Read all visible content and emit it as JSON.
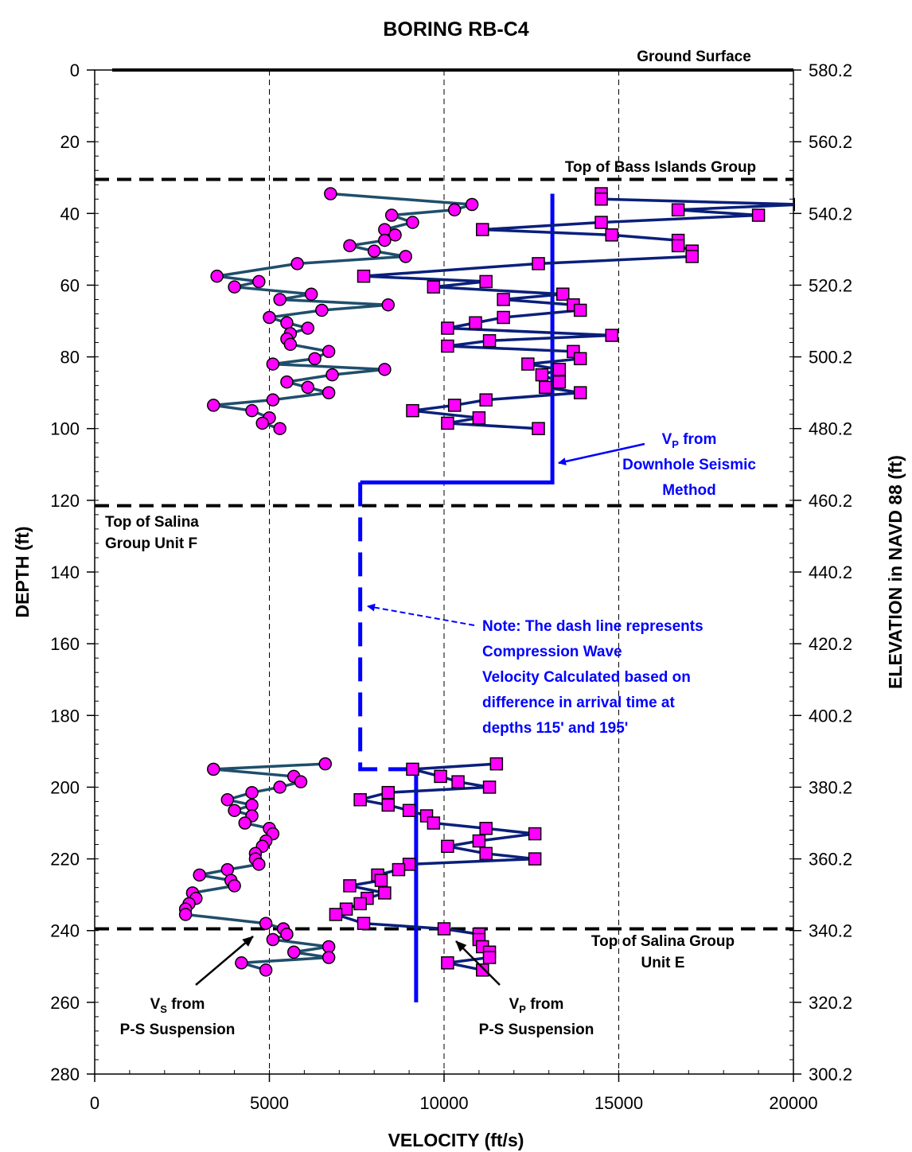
{
  "chart_data": {
    "type": "scatter",
    "title": "BORING RB-C4",
    "xlabel": "VELOCITY (ft/s)",
    "ylabel": "DEPTH (ft)",
    "y2label": "ELEVATION in NAVD 88 (ft)",
    "xlim": [
      0,
      20000
    ],
    "ylim": [
      0,
      280
    ],
    "y_inverted": true,
    "x_ticks": [
      "0",
      "5000",
      "10000",
      "15000",
      "20000"
    ],
    "y_ticks": [
      "0",
      "20",
      "40",
      "60",
      "80",
      "100",
      "120",
      "140",
      "160",
      "180",
      "200",
      "220",
      "240",
      "260",
      "280"
    ],
    "y2_ticks": [
      "580.2",
      "560.2",
      "540.2",
      "520.2",
      "500.2",
      "480.2",
      "460.2",
      "440.2",
      "420.2",
      "400.2",
      "380.2",
      "360.2",
      "340.2",
      "320.2",
      "300.2"
    ],
    "grid": "vertical dashed at 5000, 10000, 15000",
    "horizontal_lines": [
      {
        "depth": 0,
        "style": "solid",
        "label": "Ground Surface"
      },
      {
        "depth": 30.5,
        "style": "dashed",
        "label": "Top of Bass Islands Group"
      },
      {
        "depth": 121.5,
        "style": "dashed",
        "label_lines": [
          "Top of Salina",
          "Group Unit F"
        ]
      },
      {
        "depth": 239.5,
        "style": "dashed",
        "label_lines": [
          "Top of Salina Group",
          "Unit E"
        ]
      }
    ],
    "series": [
      {
        "label_lines": [
          "V",
          "from",
          "P-S Suspension"
        ],
        "sub": "S",
        "marker": "circle",
        "line_color": "#1F4E6B",
        "marker_color": "#FF00FF",
        "points": [
          [
            6750,
            34.5
          ],
          [
            10800,
            37.5
          ],
          [
            10300,
            39
          ],
          [
            8500,
            40.5
          ],
          [
            9100,
            42.5
          ],
          [
            8300,
            44.5
          ],
          [
            8600,
            46
          ],
          [
            8300,
            47.5
          ],
          [
            7300,
            49
          ],
          [
            8000,
            50.5
          ],
          [
            8900,
            52
          ],
          [
            5800,
            54
          ],
          [
            3500,
            57.5
          ],
          [
            4700,
            59
          ],
          [
            4000,
            60.5
          ],
          [
            6200,
            62.5
          ],
          [
            5300,
            64
          ],
          [
            8400,
            65.5
          ],
          [
            6500,
            67
          ],
          [
            5000,
            69
          ],
          [
            5500,
            70.5
          ],
          [
            6100,
            72
          ],
          [
            5600,
            73.5
          ],
          [
            5500,
            75
          ],
          [
            5600,
            76.5
          ],
          [
            6700,
            78.5
          ],
          [
            6300,
            80.5
          ],
          [
            5100,
            82
          ],
          [
            8300,
            83.5
          ],
          [
            6800,
            85
          ],
          [
            5500,
            87
          ],
          [
            6100,
            88.5
          ],
          [
            6700,
            90
          ],
          [
            5100,
            92
          ],
          [
            3400,
            93.5
          ],
          [
            4500,
            95
          ],
          [
            5000,
            97
          ],
          [
            4800,
            98.5
          ],
          [
            5300,
            100
          ],
          [
            6600,
            193.5
          ],
          [
            3400,
            195
          ],
          [
            5700,
            197
          ],
          [
            5900,
            198.5
          ],
          [
            5300,
            200
          ],
          [
            4500,
            201.5
          ],
          [
            3800,
            203.5
          ],
          [
            4500,
            205
          ],
          [
            4000,
            206.5
          ],
          [
            4500,
            208
          ],
          [
            4300,
            210
          ],
          [
            5000,
            211.5
          ],
          [
            5100,
            213
          ],
          [
            4900,
            215
          ],
          [
            4800,
            216.5
          ],
          [
            4600,
            218.5
          ],
          [
            4600,
            220
          ],
          [
            4700,
            221.5
          ],
          [
            3800,
            223
          ],
          [
            3000,
            224.5
          ],
          [
            3900,
            226
          ],
          [
            4000,
            227.5
          ],
          [
            2800,
            229.5
          ],
          [
            2900,
            231
          ],
          [
            2700,
            232.5
          ],
          [
            2600,
            234
          ],
          [
            2600,
            235.5
          ],
          [
            4900,
            238
          ],
          [
            5400,
            239.5
          ],
          [
            5500,
            241
          ],
          [
            5100,
            242.5
          ],
          [
            6700,
            244.5
          ],
          [
            5700,
            246
          ],
          [
            6700,
            247.5
          ],
          [
            4200,
            249
          ],
          [
            4900,
            251
          ]
        ]
      },
      {
        "label_lines": [
          "V",
          "from",
          "P-S Suspension"
        ],
        "sub": "P",
        "marker": "square",
        "line_color": "#0A1F7A",
        "marker_color": "#FF00FF",
        "points": [
          [
            14500,
            34.5
          ],
          [
            14500,
            36
          ],
          [
            20200,
            37.5
          ],
          [
            16700,
            39
          ],
          [
            19000,
            40.5
          ],
          [
            14500,
            42.5
          ],
          [
            11100,
            44.5
          ],
          [
            14800,
            46
          ],
          [
            16700,
            47.5
          ],
          [
            16700,
            49
          ],
          [
            17100,
            50.5
          ],
          [
            17100,
            52
          ],
          [
            12700,
            54
          ],
          [
            7700,
            57.5
          ],
          [
            11200,
            59
          ],
          [
            9700,
            60.5
          ],
          [
            13400,
            62.5
          ],
          [
            11700,
            64
          ],
          [
            13700,
            65.5
          ],
          [
            13900,
            67
          ],
          [
            11700,
            69
          ],
          [
            10900,
            70.5
          ],
          [
            10100,
            72
          ],
          [
            14800,
            74
          ],
          [
            11300,
            75.5
          ],
          [
            10100,
            77
          ],
          [
            13700,
            78.5
          ],
          [
            13900,
            80.5
          ],
          [
            12400,
            82
          ],
          [
            13300,
            83.5
          ],
          [
            12800,
            85
          ],
          [
            13300,
            87
          ],
          [
            12900,
            88.5
          ],
          [
            13900,
            90
          ],
          [
            11200,
            92
          ],
          [
            10300,
            93.5
          ],
          [
            9100,
            95
          ],
          [
            11000,
            97
          ],
          [
            10100,
            98.5
          ],
          [
            12700,
            100
          ],
          [
            11500,
            193.5
          ],
          [
            9100,
            195
          ],
          [
            9900,
            197
          ],
          [
            10400,
            198.5
          ],
          [
            11300,
            200
          ],
          [
            8400,
            201.5
          ],
          [
            7600,
            203.5
          ],
          [
            8400,
            205
          ],
          [
            9000,
            206.5
          ],
          [
            9500,
            208
          ],
          [
            9700,
            210
          ],
          [
            11200,
            211.5
          ],
          [
            12600,
            213
          ],
          [
            11000,
            215
          ],
          [
            10100,
            216.5
          ],
          [
            11200,
            218.5
          ],
          [
            12600,
            220
          ],
          [
            9000,
            221.5
          ],
          [
            8700,
            223
          ],
          [
            8100,
            224.5
          ],
          [
            8200,
            226
          ],
          [
            7300,
            227.5
          ],
          [
            8300,
            229.5
          ],
          [
            7800,
            231
          ],
          [
            7600,
            232.5
          ],
          [
            7200,
            234
          ],
          [
            6900,
            235.5
          ],
          [
            7700,
            238
          ],
          [
            10000,
            239.5
          ],
          [
            11000,
            241
          ],
          [
            11000,
            242.5
          ],
          [
            11100,
            244.5
          ],
          [
            11300,
            246
          ],
          [
            11300,
            247.5
          ],
          [
            10100,
            249
          ],
          [
            11100,
            251
          ]
        ]
      },
      {
        "label_lines": [
          "V",
          "from",
          "Downhole Seismic",
          "Method"
        ],
        "sub": "P",
        "style": "solid",
        "color": "#0000FF",
        "points": [
          [
            13100,
            34.5
          ],
          [
            13100,
            115
          ],
          [
            7600,
            115
          ]
        ]
      },
      {
        "style": "dashed",
        "color": "#0000FF",
        "points": [
          [
            7600,
            115
          ],
          [
            7600,
            195
          ],
          [
            9200,
            195
          ]
        ]
      },
      {
        "style": "solid",
        "color": "#0000FF",
        "points": [
          [
            9200,
            195
          ],
          [
            9200,
            260
          ]
        ]
      }
    ],
    "annotations": {
      "note_lines": [
        "Note: The dash line represents",
        "Compression Wave",
        "Velocity Calculated based on",
        "difference in arrival time at",
        "depths 115' and 195'"
      ]
    }
  }
}
